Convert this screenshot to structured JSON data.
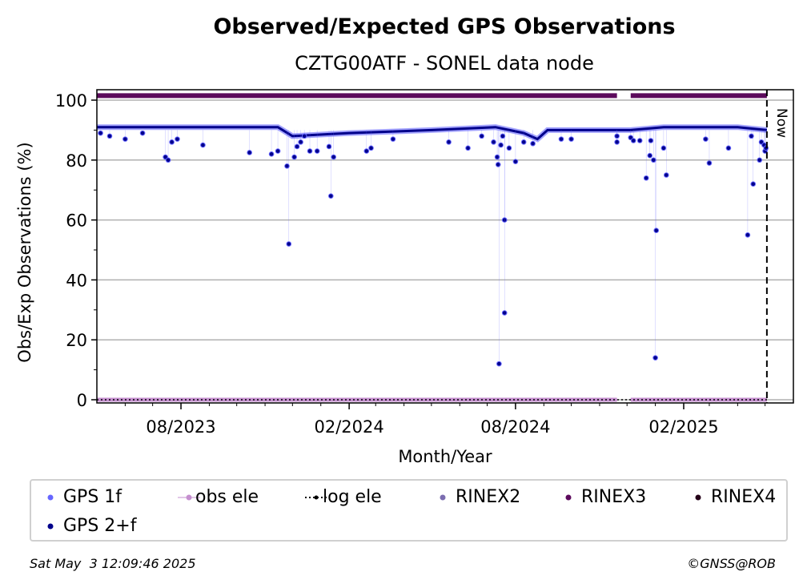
{
  "title": "Observed/Expected GPS Observations",
  "subtitle": "CZTG00ATF - SONEL data node",
  "footer": {
    "timestamp": "Sat May  3 12:09:46 2025",
    "credit": "©GNSS@ROB"
  },
  "colors": {
    "gps_1f": "#6666ff",
    "gps_2f": "#00008b",
    "obs_ele": "#c58fcf",
    "log_ele": "#000000",
    "rinex2": "#7b6db0",
    "rinex3": "#5c0a5c",
    "rinex4": "#240018",
    "grid": "#b0b0b0"
  },
  "legend": [
    {
      "label": "GPS 1f",
      "marker": "dot",
      "color_key": "gps_1f"
    },
    {
      "label": "obs ele",
      "marker": "line-dot",
      "color_key": "obs_ele"
    },
    {
      "label": "log ele",
      "marker": "dotted-line",
      "color_key": "log_ele"
    },
    {
      "label": "RINEX2",
      "marker": "dot",
      "color_key": "rinex2"
    },
    {
      "label": "RINEX3",
      "marker": "dot",
      "color_key": "rinex3"
    },
    {
      "label": "RINEX4",
      "marker": "dot",
      "color_key": "rinex4"
    },
    {
      "label": "GPS 2+f",
      "marker": "dot",
      "color_key": "gps_2f"
    }
  ],
  "chart_data": {
    "type": "scatter",
    "title": "Observed/Expected GPS Observations",
    "subtitle": "CZTG00ATF - SONEL data node",
    "xlabel": "Month/Year",
    "ylabel": "Obs/Exp Observations (%)",
    "x_ticks": [
      "08/2023",
      "02/2024",
      "08/2024",
      "02/2025"
    ],
    "x_range": [
      "2023-05-01",
      "2025-06-01"
    ],
    "ylim": [
      0,
      100
    ],
    "y_ticks": [
      0,
      20,
      40,
      60,
      80,
      100
    ],
    "grid": "horizontal",
    "now_marker": {
      "label": "Now",
      "date": "2025-05-03"
    },
    "data_gap": [
      "2024-11-20",
      "2024-12-05"
    ],
    "rinex3_level": 101.5,
    "obs_ele_level": 0,
    "series": [
      {
        "name": "GPS 2+f",
        "baseline": [
          [
            "2023-05-01",
            91
          ],
          [
            "2023-08-01",
            91
          ],
          [
            "2023-10-01",
            91
          ],
          [
            "2023-11-15",
            91
          ],
          [
            "2023-12-01",
            88
          ],
          [
            "2024-02-01",
            89
          ],
          [
            "2024-05-01",
            90
          ],
          [
            "2024-07-10",
            91
          ],
          [
            "2024-08-10",
            89
          ],
          [
            "2024-08-25",
            87
          ],
          [
            "2024-09-05",
            90
          ],
          [
            "2024-11-18",
            90
          ],
          [
            "2024-12-05",
            90
          ],
          [
            "2025-01-10",
            91
          ],
          [
            "2025-04-01",
            91
          ],
          [
            "2025-05-03",
            90
          ]
        ],
        "outliers": [
          [
            "2023-05-05",
            89
          ],
          [
            "2023-05-15",
            88
          ],
          [
            "2023-06-01",
            87
          ],
          [
            "2023-06-20",
            89
          ],
          [
            "2023-07-15",
            81
          ],
          [
            "2023-07-18",
            80
          ],
          [
            "2023-07-22",
            86
          ],
          [
            "2023-07-28",
            87
          ],
          [
            "2023-08-25",
            85
          ],
          [
            "2023-10-15",
            82.5
          ],
          [
            "2023-11-08",
            82
          ],
          [
            "2023-11-15",
            83
          ],
          [
            "2023-11-25",
            78
          ],
          [
            "2023-11-27",
            52
          ],
          [
            "2023-12-03",
            81
          ],
          [
            "2023-12-06",
            84.5
          ],
          [
            "2023-12-10",
            86
          ],
          [
            "2023-12-14",
            88
          ],
          [
            "2023-12-20",
            83
          ],
          [
            "2023-12-28",
            83
          ],
          [
            "2024-01-10",
            84.5
          ],
          [
            "2024-01-12",
            68
          ],
          [
            "2024-01-15",
            81
          ],
          [
            "2024-02-20",
            83
          ],
          [
            "2024-02-25",
            84
          ],
          [
            "2024-03-20",
            87
          ],
          [
            "2024-05-20",
            86
          ],
          [
            "2024-06-10",
            84
          ],
          [
            "2024-06-25",
            88
          ],
          [
            "2024-07-08",
            86
          ],
          [
            "2024-07-12",
            81
          ],
          [
            "2024-07-13",
            78.5
          ],
          [
            "2024-07-14",
            12
          ],
          [
            "2024-07-16",
            85
          ],
          [
            "2024-07-18",
            88
          ],
          [
            "2024-07-20",
            60
          ],
          [
            "2024-07-20",
            29
          ],
          [
            "2024-07-25",
            84
          ],
          [
            "2024-08-01",
            79.5
          ],
          [
            "2024-08-10",
            86
          ],
          [
            "2024-08-20",
            85.5
          ],
          [
            "2024-09-20",
            87
          ],
          [
            "2024-10-01",
            87
          ],
          [
            "2024-11-20",
            88
          ],
          [
            "2024-11-20",
            86
          ],
          [
            "2024-12-05",
            87.5
          ],
          [
            "2024-12-08",
            86.5
          ],
          [
            "2024-12-15",
            86.5
          ],
          [
            "2024-12-22",
            74
          ],
          [
            "2024-12-26",
            81.5
          ],
          [
            "2024-12-27",
            86.5
          ],
          [
            "2024-12-30",
            80
          ],
          [
            "2025-01-01",
            14
          ],
          [
            "2025-01-02",
            56.5
          ],
          [
            "2025-01-10",
            84
          ],
          [
            "2025-01-13",
            75
          ],
          [
            "2025-02-25",
            87
          ],
          [
            "2025-03-01",
            79
          ],
          [
            "2025-03-22",
            84
          ],
          [
            "2025-04-12",
            55
          ],
          [
            "2025-04-16",
            88
          ],
          [
            "2025-04-18",
            72
          ],
          [
            "2025-04-25",
            80
          ],
          [
            "2025-04-27",
            86
          ],
          [
            "2025-04-30",
            85
          ],
          [
            "2025-05-01",
            83
          ],
          [
            "2025-05-02",
            84
          ]
        ]
      }
    ]
  }
}
